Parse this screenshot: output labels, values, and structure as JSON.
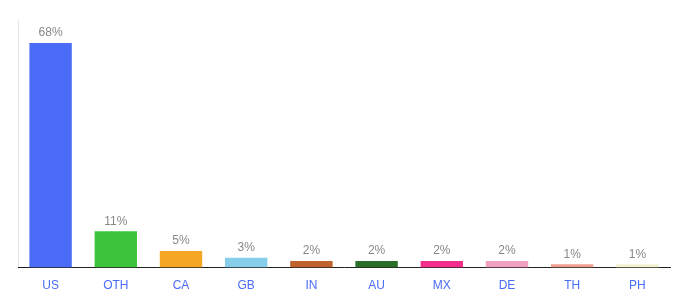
{
  "chart_data": {
    "type": "bar",
    "categories": [
      "US",
      "OTH",
      "CA",
      "GB",
      "IN",
      "AU",
      "MX",
      "DE",
      "TH",
      "PH"
    ],
    "values": [
      68,
      11,
      5,
      3,
      2,
      2,
      2,
      2,
      1,
      1
    ],
    "value_labels": [
      "68%",
      "11%",
      "5%",
      "3%",
      "2%",
      "2%",
      "2%",
      "2%",
      "1%",
      "1%"
    ],
    "colors": [
      "#4a6cf7",
      "#3cc43c",
      "#f5a623",
      "#87ceeb",
      "#c0622e",
      "#2a6e2a",
      "#f52d8c",
      "#f0a0c0",
      "#f0a090",
      "#f5f0d0"
    ],
    "ylim": [
      0,
      75
    ],
    "grid": false,
    "data_labels": true,
    "tick_labels": "x"
  }
}
